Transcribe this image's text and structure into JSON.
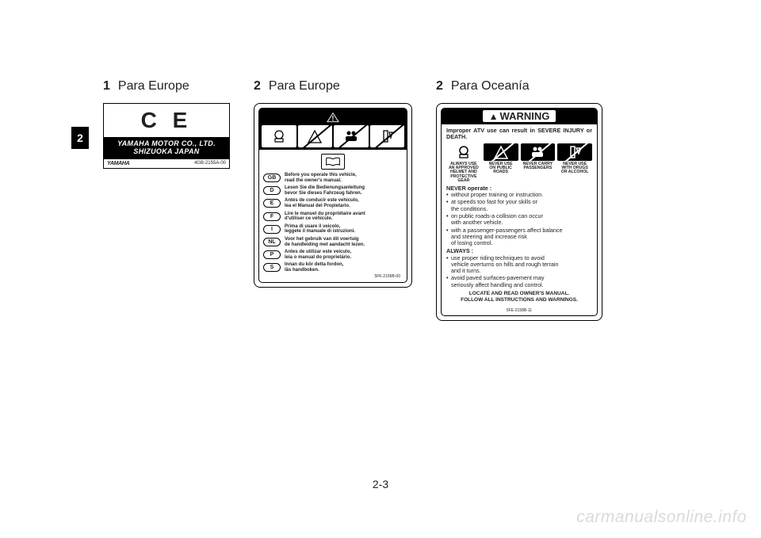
{
  "page": {
    "chapter_tab": "2",
    "page_number": "2-3",
    "watermark": "carmanualsonline.info"
  },
  "captions": {
    "c1_num": "1",
    "c1_txt": "Para Europe",
    "c2_num": "2",
    "c2_txt": "Para Europe",
    "c3_num": "2",
    "c3_txt": "Para Oceanía"
  },
  "ce_label": {
    "mark": "C E",
    "line1": "YAMAHA MOTOR CO., LTD.",
    "line2": "SHIZUOKA   JAPAN",
    "footer_logo": "YAMAHA",
    "footer_partno": "4GB-2155A-00"
  },
  "eu_warn": {
    "languages": [
      {
        "code": "GB",
        "text": "Before you operate this vehicle,\nread the owner's manual."
      },
      {
        "code": "D",
        "text": "Lesen Sie die Bedienungsanleitung\nbevor Sie dieses Fahrzeug fahren."
      },
      {
        "code": "E",
        "text": "Antes de conducir este vehículo,\nlea el Manual del Propietario."
      },
      {
        "code": "F",
        "text": "Lire le manuel du propriétaire avant\nd'utiliser ce véhicule."
      },
      {
        "code": "I",
        "text": "Prima di usare il veicolo,\nleggete il manuale di istruzioni."
      },
      {
        "code": "NL",
        "text": "Voor het gebruik van dit voertuig\nde handleiding met aandacht lezen."
      },
      {
        "code": "P",
        "text": "Antes de utilizar este veículo,\nleia o manual do proprietário."
      },
      {
        "code": "S",
        "text": "Innan du kör detta fordon,\nläs handboken."
      }
    ],
    "partno": "5FK-2156B-00",
    "icon_labels": [
      "HELMET",
      "ROAD",
      "PASS",
      "DRINK"
    ]
  },
  "oc_warn": {
    "header": "WARNING",
    "lead": "Improper ATV use can result in SEVERE INJURY or DEATH.",
    "icons": [
      {
        "caption": "ALWAYS USE\nAN APPROVED\nHELMET AND\nPROTECTIVE\nGEAR"
      },
      {
        "caption": "NEVER USE\nON PUBLIC\nROADS"
      },
      {
        "caption": "NEVER CARRY\nPASSENGERS"
      },
      {
        "caption": "NEVER USE\nWITH DRUGS\nOR ALCOHOL"
      }
    ],
    "never_hd": "NEVER operate :",
    "never": [
      "without proper training or instruction.",
      "at speeds too fast for your skills or\nthe conditions.",
      "on public roads-a collision can occur\nwith another vehicle.",
      "with a passenger-passengers affect balance\nand steering and increase risk\nof losing control."
    ],
    "always_hd": "ALWAYS :",
    "always": [
      "use proper riding techniques to avoid\nvehicle overturns on hills and rough terrain\nand it turns.",
      "avoid paved surfaces-pavement may\nseriously affect handling and control."
    ],
    "footer1": "LOCATE AND READ OWNER'S MANUAL.",
    "footer2": "FOLLOW ALL INSTRUCTIONS AND WARNINGS.",
    "partno": "5FE-2158B-11"
  },
  "colors": {
    "text": "#222222",
    "black": "#000000",
    "white": "#ffffff",
    "watermark": "#dadada"
  }
}
